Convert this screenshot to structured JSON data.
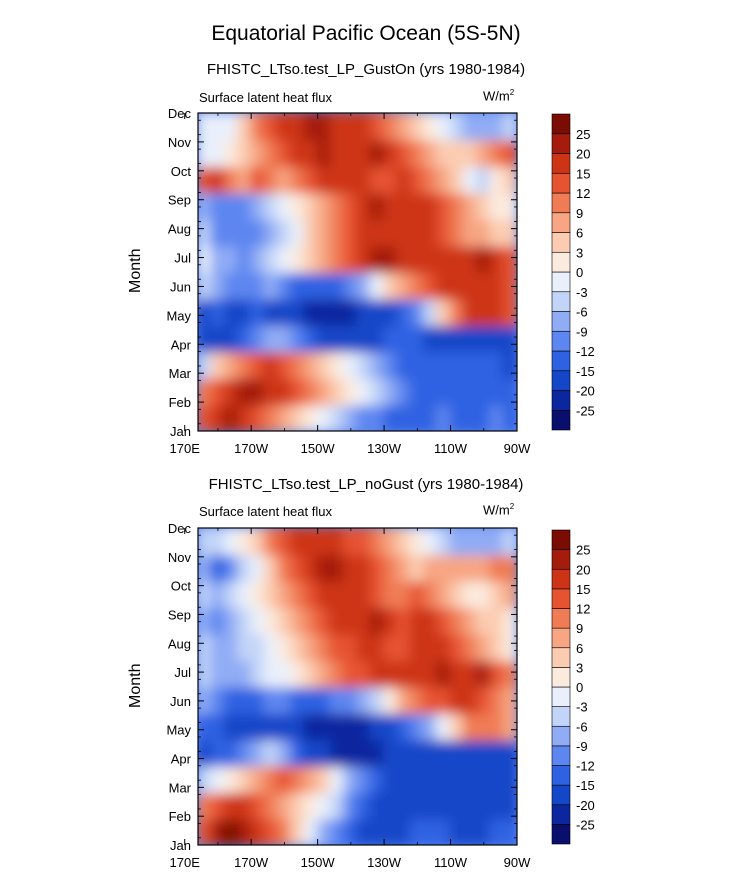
{
  "main_title": "Equatorial Pacific Ocean (5S-5N)",
  "panels": [
    {
      "title": "FHISTC_LTso.test_LP_GustOn (yrs 1980-1984)",
      "left_string": "Surface latent heat flux",
      "units": "W/m",
      "units_sup": "2",
      "ylabel": "Month"
    },
    {
      "title": "FHISTC_LTso.test_LP_noGust (yrs 1980-1984)",
      "left_string": "Surface latent heat flux",
      "units": "W/m",
      "units_sup": "2",
      "ylabel": "Month"
    }
  ],
  "colors": {
    "levels": [
      "#0a0f6e",
      "#0b27a0",
      "#1446c8",
      "#2f62e2",
      "#5d86f0",
      "#90acf5",
      "#c2d4f8",
      "#e9f0fb",
      "#fbeade",
      "#fbccb1",
      "#f7a582",
      "#f07c55",
      "#e65330",
      "#cd3416",
      "#a61c0c",
      "#7a0c04"
    ]
  },
  "chart_data": [
    {
      "type": "heatmap",
      "variant": "filled-contour",
      "title": "FHISTC_LTso.test_LP_GustOn (yrs 1980-1984)",
      "xlabel": "",
      "ylabel": "Month",
      "x_ticks": [
        "170E",
        "170W",
        "150W",
        "130W",
        "110W",
        "90W"
      ],
      "y_ticks": [
        "Jan",
        "Feb",
        "Mar",
        "Apr",
        "May",
        "Jun",
        "Jul",
        "Aug",
        "Sep",
        "Oct",
        "Nov",
        "Dec"
      ],
      "colorbar_labels": [
        "-25",
        "-20",
        "-15",
        "-12",
        "-9",
        "-6",
        "-3",
        "0",
        "3",
        "6",
        "9",
        "12",
        "15",
        "20",
        "25"
      ],
      "cols": 24,
      "rows": 12,
      "z": [
        [
          12,
          15,
          20,
          16,
          12,
          9,
          6,
          3,
          0,
          -3,
          -6,
          -9,
          -12,
          -12,
          -15,
          -15,
          -15,
          -15,
          -12,
          -15,
          -15,
          -15,
          -12,
          -15
        ],
        [
          9,
          12,
          15,
          20,
          20,
          15,
          15,
          12,
          9,
          6,
          3,
          0,
          -3,
          -6,
          -9,
          -12,
          -15,
          -15,
          -15,
          -15,
          -15,
          -15,
          -15,
          -15
        ],
        [
          -6,
          3,
          6,
          9,
          12,
          15,
          12,
          9,
          6,
          3,
          0,
          -3,
          -6,
          -9,
          -12,
          -15,
          -15,
          -15,
          -15,
          -15,
          -15,
          -15,
          -15,
          -20
        ],
        [
          -20,
          -20,
          -20,
          -15,
          -12,
          -9,
          -9,
          -12,
          -15,
          -20,
          -20,
          -20,
          -20,
          -20,
          -15,
          -15,
          -15,
          -20,
          -20,
          -20,
          -20,
          -20,
          -20,
          -20
        ],
        [
          -20,
          -15,
          -20,
          -20,
          -15,
          -20,
          -20,
          -20,
          -25,
          -25,
          -25,
          -25,
          -20,
          -20,
          -20,
          -15,
          -12,
          -6,
          3,
          9,
          15,
          15,
          15,
          12
        ],
        [
          -6,
          -9,
          -12,
          -12,
          -12,
          -9,
          -12,
          -15,
          -15,
          -15,
          -15,
          -12,
          -9,
          -3,
          3,
          6,
          9,
          12,
          15,
          15,
          15,
          15,
          15,
          12
        ],
        [
          -3,
          -9,
          -9,
          -12,
          -9,
          -6,
          -3,
          0,
          3,
          6,
          9,
          12,
          15,
          20,
          20,
          15,
          15,
          15,
          15,
          15,
          15,
          20,
          15,
          12
        ],
        [
          -6,
          -12,
          -12,
          -12,
          -12,
          -9,
          -6,
          -3,
          3,
          6,
          9,
          12,
          15,
          15,
          15,
          15,
          15,
          15,
          12,
          9,
          6,
          6,
          3,
          3
        ],
        [
          -9,
          -12,
          -12,
          -12,
          -9,
          -6,
          -3,
          0,
          3,
          6,
          9,
          12,
          15,
          20,
          15,
          15,
          15,
          15,
          12,
          9,
          6,
          3,
          0,
          0
        ],
        [
          12,
          15,
          9,
          6,
          12,
          9,
          6,
          9,
          12,
          15,
          15,
          15,
          15,
          12,
          12,
          15,
          12,
          9,
          6,
          3,
          -3,
          -6,
          0,
          3
        ],
        [
          -3,
          -3,
          0,
          3,
          6,
          9,
          12,
          15,
          15,
          20,
          15,
          15,
          15,
          20,
          15,
          12,
          9,
          6,
          3,
          3,
          3,
          6,
          9,
          12
        ],
        [
          -3,
          -3,
          -3,
          3,
          9,
          12,
          15,
          15,
          20,
          20,
          15,
          15,
          15,
          12,
          9,
          6,
          3,
          0,
          -3,
          -6,
          -9,
          -9,
          -9,
          -6
        ]
      ]
    },
    {
      "type": "heatmap",
      "variant": "filled-contour",
      "title": "FHISTC_LTso.test_LP_noGust (yrs 1980-1984)",
      "xlabel": "",
      "ylabel": "Month",
      "x_ticks": [
        "170E",
        "170W",
        "150W",
        "130W",
        "110W",
        "90W"
      ],
      "y_ticks": [
        "Jan",
        "Feb",
        "Mar",
        "Apr",
        "May",
        "Jun",
        "Jul",
        "Aug",
        "Sep",
        "Oct",
        "Nov",
        "Dec"
      ],
      "colorbar_labels": [
        "-25",
        "-20",
        "-15",
        "-12",
        "-9",
        "-6",
        "-3",
        "0",
        "3",
        "6",
        "9",
        "12",
        "15",
        "20",
        "25"
      ],
      "cols": 24,
      "rows": 12,
      "z": [
        [
          12,
          20,
          25,
          20,
          15,
          12,
          9,
          3,
          -3,
          -9,
          -12,
          -15,
          -20,
          -20,
          -20,
          -20,
          -15,
          -15,
          -15,
          -20,
          -20,
          -20,
          -15,
          -15
        ],
        [
          9,
          12,
          15,
          15,
          12,
          9,
          6,
          3,
          0,
          -3,
          -6,
          -12,
          -15,
          -20,
          -20,
          -20,
          -20,
          -20,
          -20,
          -20,
          -20,
          -20,
          -20,
          -20
        ],
        [
          -6,
          -3,
          0,
          3,
          6,
          9,
          12,
          9,
          6,
          3,
          -3,
          -9,
          -12,
          -15,
          -20,
          -20,
          -20,
          -20,
          -20,
          -20,
          -20,
          -20,
          -20,
          -20
        ],
        [
          -20,
          -15,
          -15,
          -12,
          -9,
          -6,
          -9,
          -15,
          -20,
          -20,
          -25,
          -25,
          -25,
          -25,
          -20,
          -20,
          -20,
          -20,
          -20,
          -20,
          -20,
          -20,
          -20,
          -20
        ],
        [
          -15,
          -15,
          -20,
          -20,
          -20,
          -20,
          -20,
          -20,
          -25,
          -25,
          -25,
          -25,
          -25,
          -20,
          -20,
          -15,
          -12,
          -9,
          -3,
          3,
          9,
          9,
          9,
          6
        ],
        [
          -9,
          -12,
          -15,
          -15,
          -15,
          -12,
          -12,
          -15,
          -15,
          -15,
          -12,
          -12,
          -9,
          -6,
          0,
          6,
          9,
          12,
          12,
          15,
          15,
          12,
          9,
          6
        ],
        [
          -6,
          -9,
          -9,
          -9,
          -6,
          -3,
          -3,
          0,
          3,
          6,
          9,
          12,
          12,
          15,
          15,
          15,
          15,
          15,
          20,
          15,
          15,
          20,
          12,
          9
        ],
        [
          -6,
          -9,
          -9,
          -6,
          -6,
          -3,
          0,
          3,
          6,
          9,
          12,
          12,
          15,
          15,
          12,
          12,
          15,
          15,
          15,
          12,
          9,
          6,
          3,
          0
        ],
        [
          -9,
          -12,
          -9,
          -6,
          -3,
          0,
          3,
          6,
          9,
          12,
          15,
          15,
          15,
          20,
          15,
          12,
          15,
          15,
          12,
          9,
          6,
          3,
          3,
          0
        ],
        [
          -6,
          -9,
          -6,
          -3,
          0,
          3,
          6,
          9,
          12,
          15,
          15,
          15,
          15,
          12,
          9,
          9,
          12,
          9,
          6,
          3,
          0,
          0,
          3,
          6
        ],
        [
          -9,
          -15,
          -12,
          -6,
          -3,
          3,
          9,
          12,
          15,
          20,
          20,
          15,
          15,
          12,
          9,
          6,
          3,
          6,
          6,
          6,
          6,
          6,
          9,
          9
        ],
        [
          -6,
          -6,
          -3,
          0,
          3,
          9,
          12,
          15,
          15,
          15,
          15,
          12,
          12,
          9,
          6,
          3,
          0,
          -3,
          -6,
          -9,
          -9,
          -9,
          -9,
          -6
        ]
      ]
    }
  ]
}
